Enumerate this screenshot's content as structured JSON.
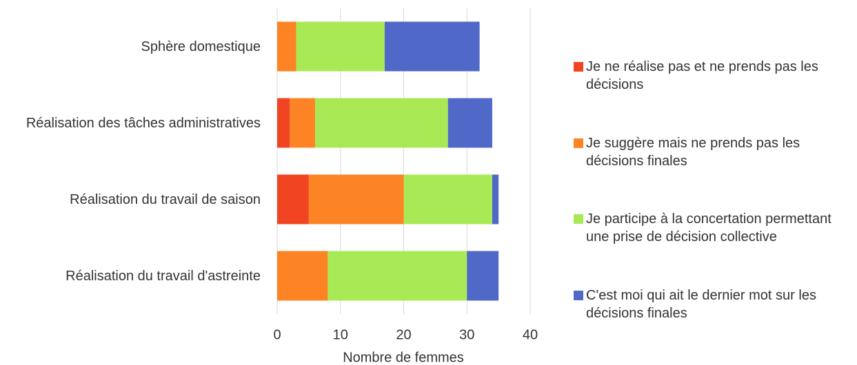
{
  "chart_data": {
    "type": "bar",
    "orientation": "horizontal",
    "stacked": true,
    "categories": [
      "Sphère domestique",
      "Réalisation des tâches administratives",
      "Réalisation du travail de saison",
      "Réalisation du travail d'astreinte"
    ],
    "series": [
      {
        "name": "Je ne réalise pas et ne prends pas les décisions",
        "color": "#f04423",
        "values": [
          0,
          2,
          5,
          0
        ]
      },
      {
        "name": "Je suggère mais ne prends pas les décisions finales",
        "color": "#fd8424",
        "values": [
          3,
          4,
          15,
          8
        ]
      },
      {
        "name": "Je participe à la concertation permettant une prise de décision collective",
        "color": "#a9e955",
        "values": [
          14,
          21,
          14,
          22
        ]
      },
      {
        "name": "C'est moi qui ait le dernier mot sur les décisions finales",
        "color": "#5068c8",
        "values": [
          15,
          7,
          1,
          5
        ]
      }
    ],
    "x_label": "Nombre de femmes",
    "xlim": [
      0,
      40
    ],
    "xticks": [
      0,
      10,
      20,
      30,
      40
    ],
    "grid": true,
    "legend": "right"
  }
}
